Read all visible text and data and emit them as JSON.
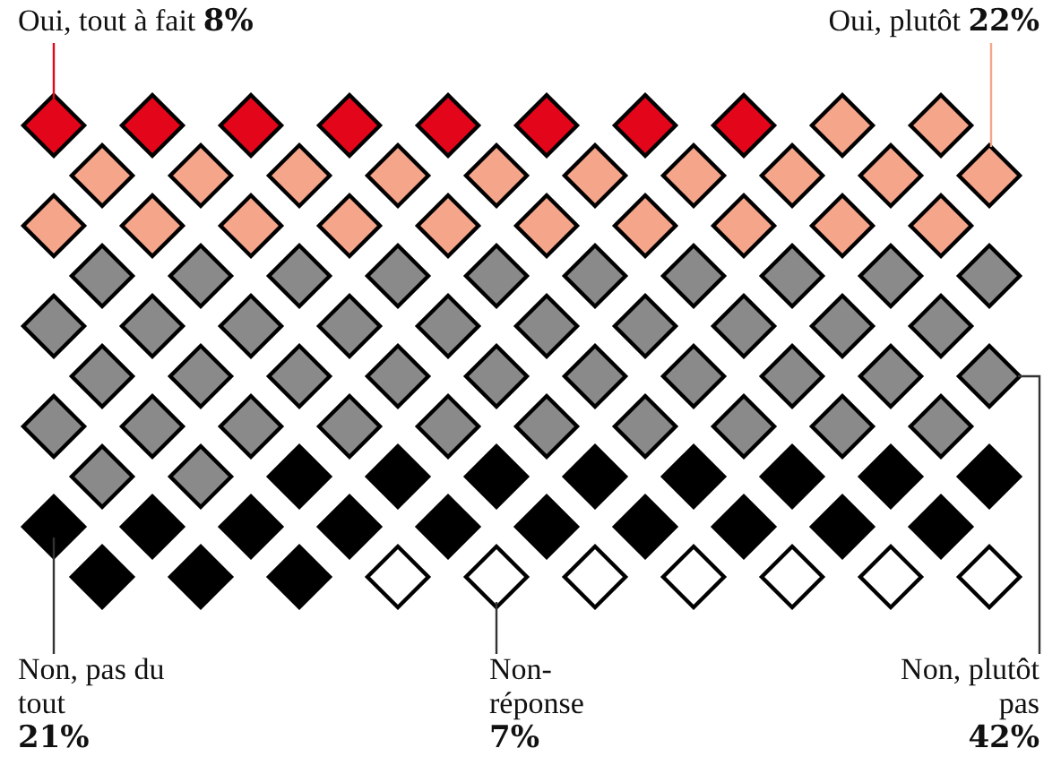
{
  "chart_data": {
    "type": "other",
    "categories": [
      "Oui, tout à fait",
      "Oui, plutôt",
      "Non, plutôt pas",
      "Non, pas du tout",
      "Non-réponse"
    ],
    "values": [
      8,
      22,
      42,
      21,
      7
    ],
    "value_labels": [
      "8%",
      "22%",
      "42%",
      "21%",
      "7%"
    ],
    "colors": [
      "#e3061a",
      "#f4a58a",
      "#8a8a8a",
      "#000000",
      "#ffffff"
    ]
  }
}
